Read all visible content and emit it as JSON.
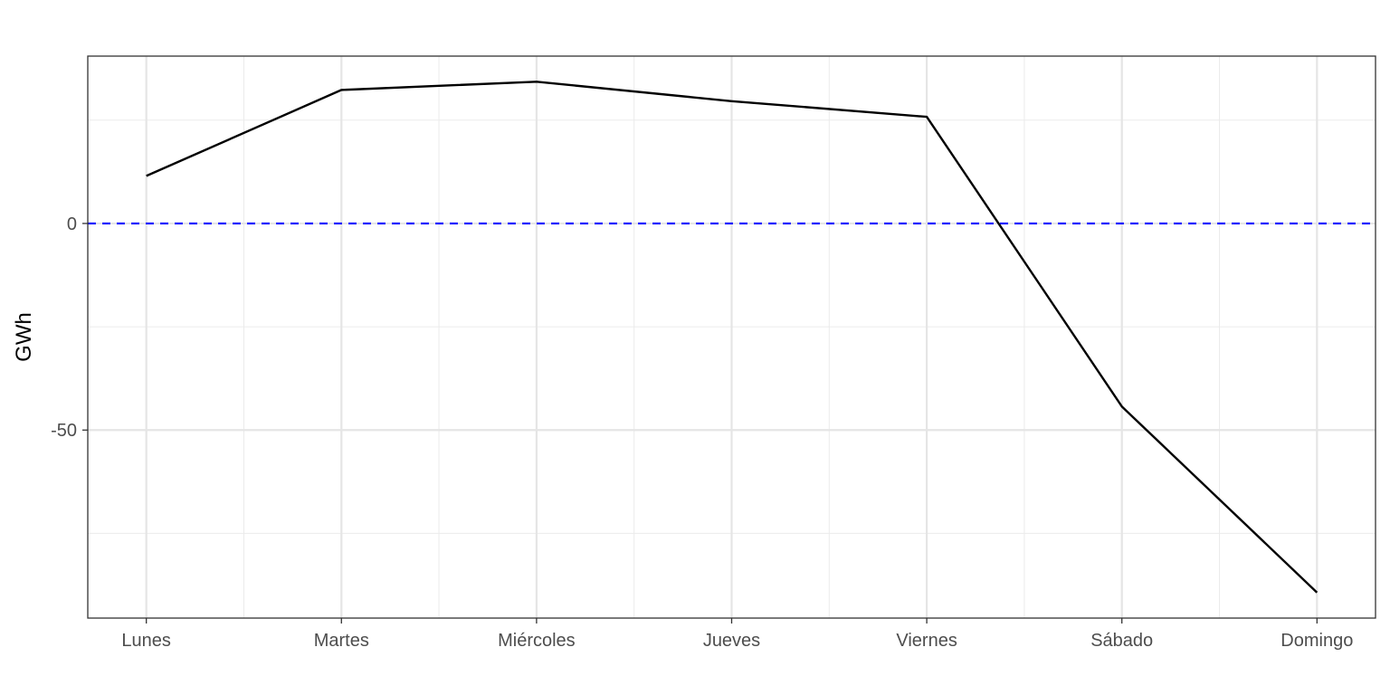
{
  "chart_data": {
    "type": "line",
    "title": "",
    "xlabel": "",
    "ylabel": "GWh",
    "categories": [
      "Lunes",
      "Martes",
      "Miércoles",
      "Jueves",
      "Viernes",
      "Sábado",
      "Domingo"
    ],
    "values": [
      11.5,
      32.3,
      34.3,
      29.6,
      25.8,
      -44.3,
      -89.3
    ],
    "ylim": [
      -95.5,
      40.5
    ],
    "y_ticks": [
      0,
      -50
    ],
    "y_tick_labels": [
      "0",
      "-50"
    ],
    "y_minor_ticks": [
      25,
      -25,
      -75
    ],
    "reference_line": {
      "y": 0,
      "style": "dashed",
      "color": "#0000ff"
    },
    "line_color": "#000000",
    "grid": true,
    "legend": "none"
  }
}
